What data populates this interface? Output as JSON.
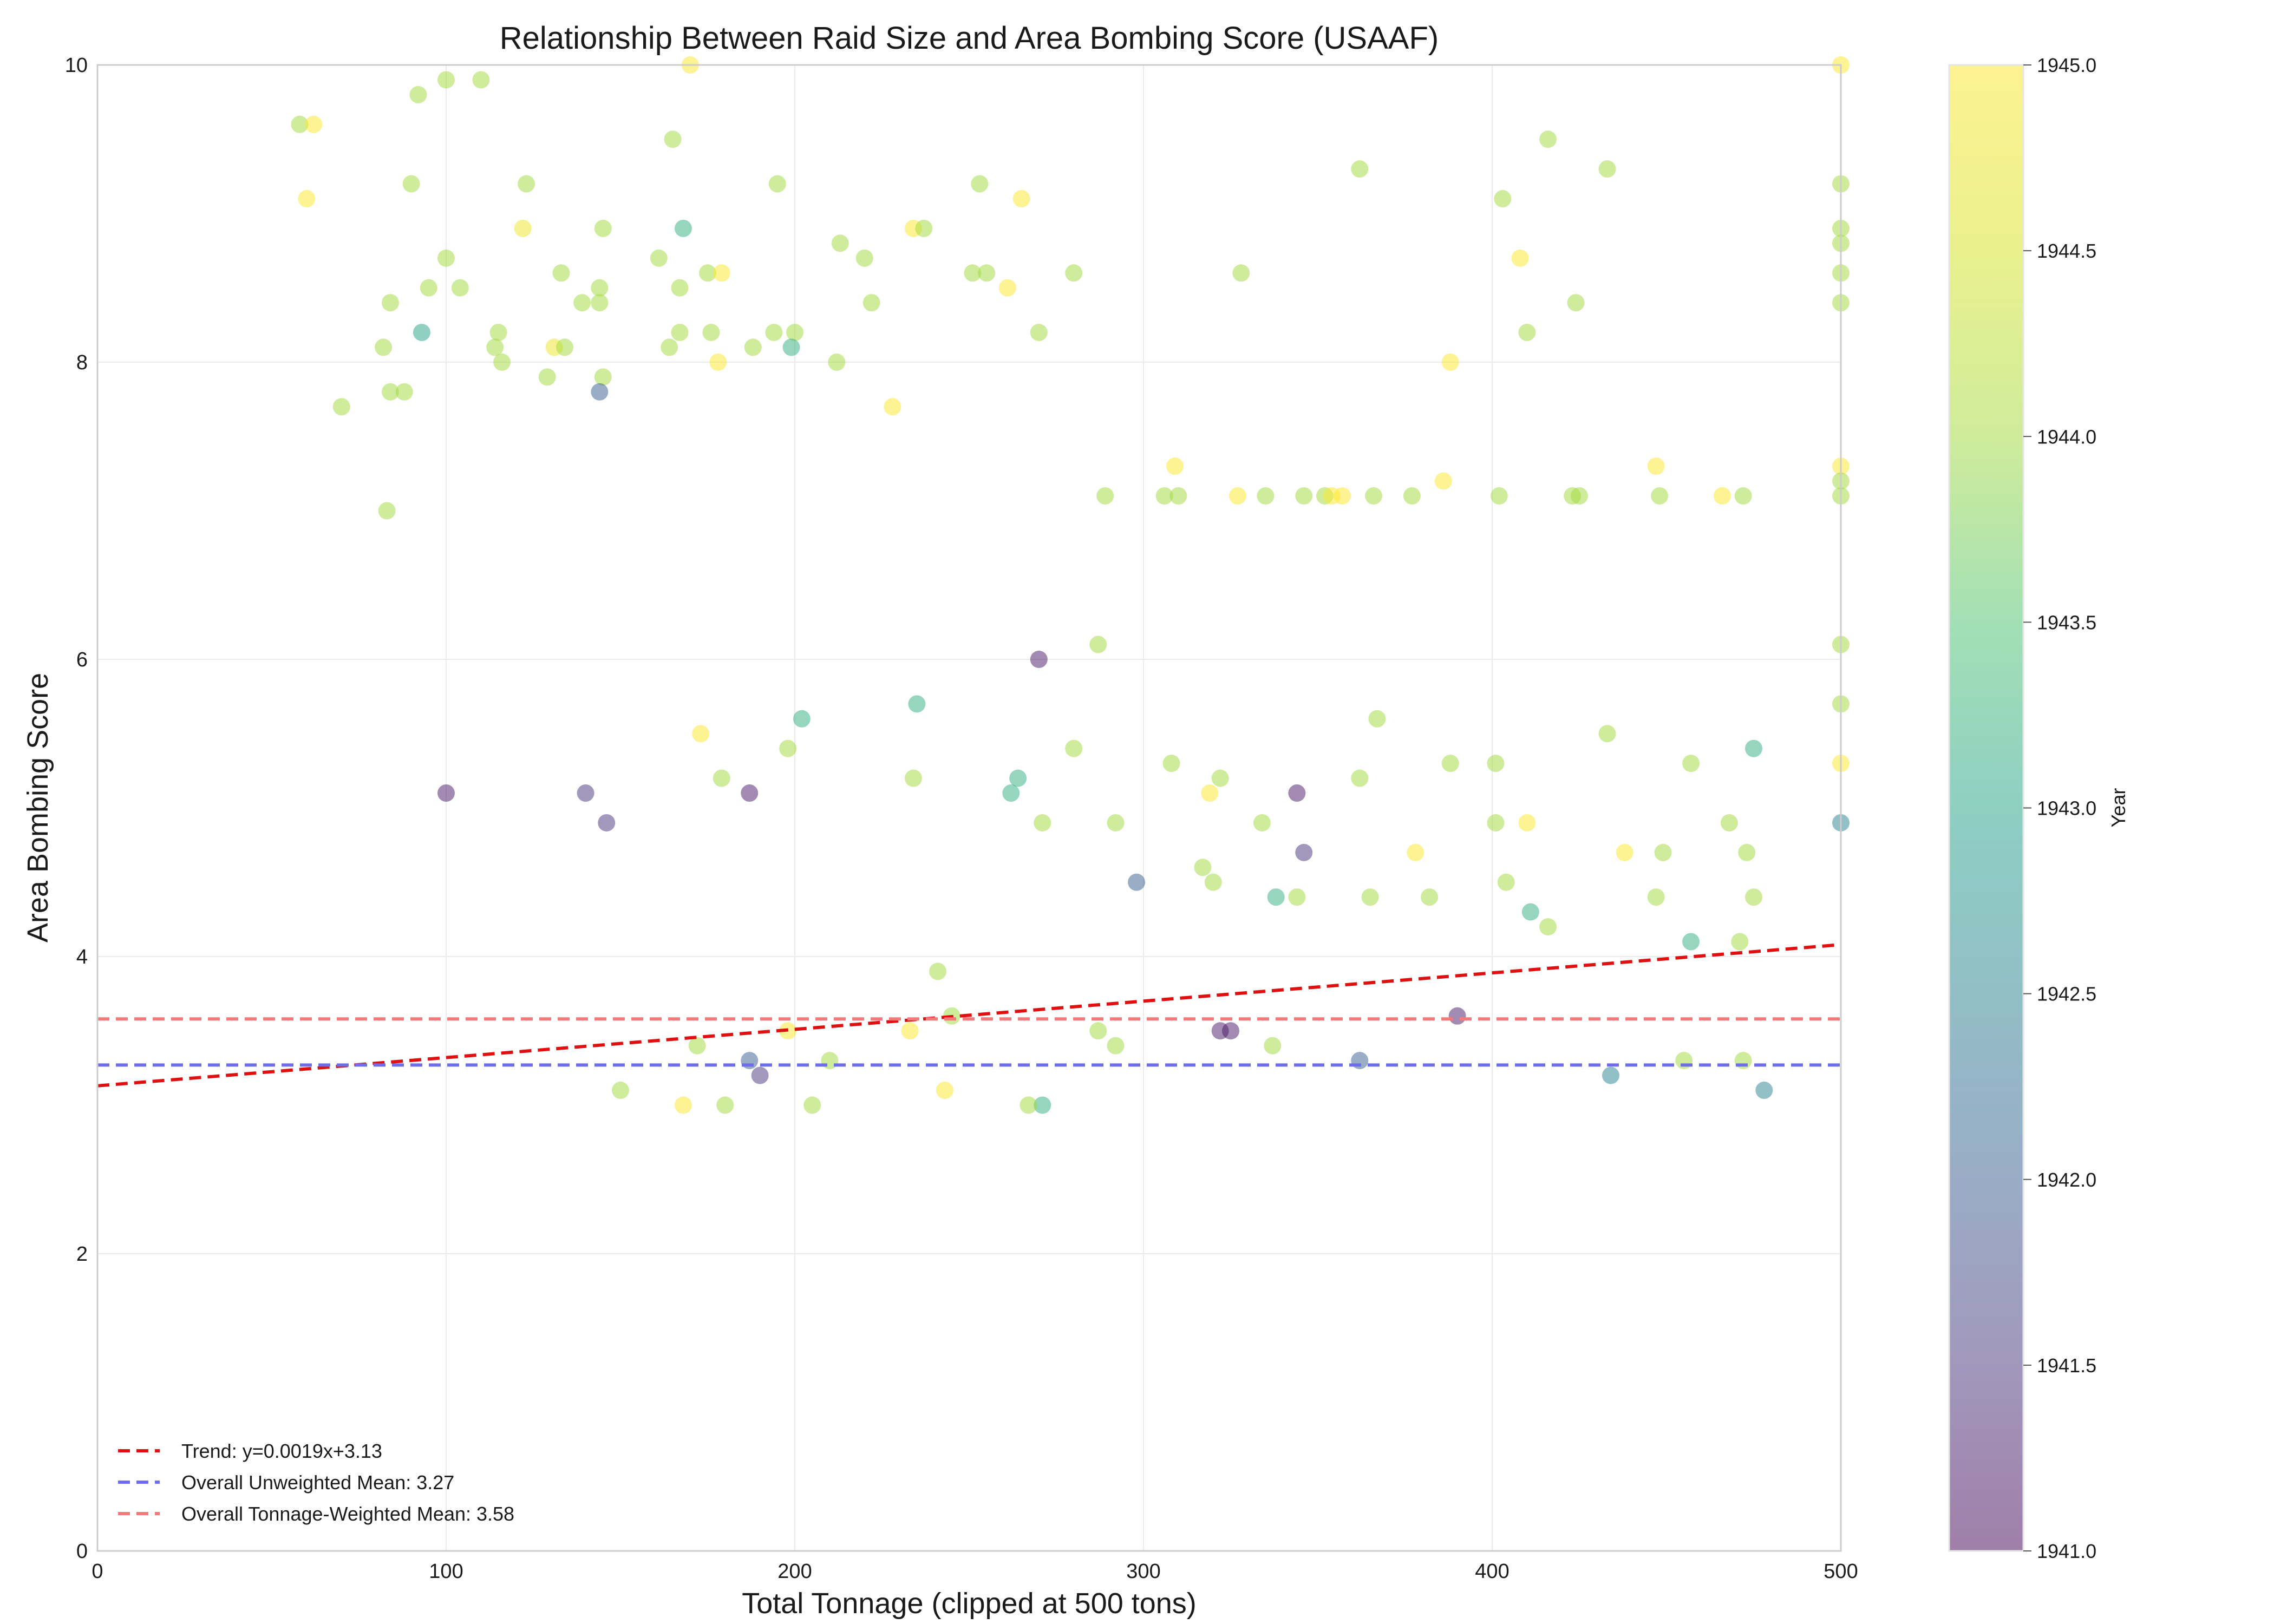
{
  "chart_data": {
    "type": "scatter",
    "title": "Relationship Between Raid Size and Area Bombing Score (USAAF)",
    "xlabel": "Total Tonnage (clipped at 500 tons)",
    "ylabel": "Area Bombing Score",
    "xlim": [
      0,
      500
    ],
    "ylim": [
      0,
      10
    ],
    "xticks": [
      "0",
      "100",
      "200",
      "300",
      "400",
      "500"
    ],
    "yticks": [
      "0",
      "2",
      "4",
      "6",
      "8",
      "10"
    ],
    "grid": true,
    "legend_position": "lower-left",
    "colorbar": {
      "label": "Year",
      "range": [
        1941.0,
        1945.0
      ],
      "ticks": [
        "1941.0",
        "1941.5",
        "1942.0",
        "1942.5",
        "1943.0",
        "1943.5",
        "1944.0",
        "1944.5",
        "1945.0"
      ],
      "colormap": "viridis",
      "alpha": 0.5
    },
    "lines": [
      {
        "label": "Trend: y=0.0019x+3.13",
        "style": "dashed",
        "color": "#e01010",
        "slope": 0.0019,
        "intercept": 3.13
      },
      {
        "label": "Overall Unweighted Mean: 3.27",
        "style": "dashed",
        "color": "#6e6ee8",
        "value": 3.27
      },
      {
        "label": "Overall Tonnage-Weighted Mean: 3.58",
        "style": "dashed",
        "color": "#f27a7a",
        "value": 3.58
      }
    ],
    "points": [
      {
        "x": 100,
        "y": 9.9,
        "year": 1944.0
      },
      {
        "x": 110,
        "y": 9.9,
        "year": 1944.0
      },
      {
        "x": 92,
        "y": 9.8,
        "year": 1944.0
      },
      {
        "x": 170,
        "y": 10.0,
        "year": 1945.0
      },
      {
        "x": 500,
        "y": 10.0,
        "year": 1945.0
      },
      {
        "x": 58,
        "y": 9.6,
        "year": 1944.0
      },
      {
        "x": 62,
        "y": 9.6,
        "year": 1945.0
      },
      {
        "x": 165,
        "y": 9.5,
        "year": 1944.0
      },
      {
        "x": 416,
        "y": 9.5,
        "year": 1944.0
      },
      {
        "x": 362,
        "y": 9.3,
        "year": 1944.0
      },
      {
        "x": 433,
        "y": 9.3,
        "year": 1944.0
      },
      {
        "x": 195,
        "y": 9.2,
        "year": 1944.0
      },
      {
        "x": 253,
        "y": 9.2,
        "year": 1944.0
      },
      {
        "x": 500,
        "y": 9.2,
        "year": 1944.0
      },
      {
        "x": 90,
        "y": 9.2,
        "year": 1944.0
      },
      {
        "x": 123,
        "y": 9.2,
        "year": 1944.0
      },
      {
        "x": 403,
        "y": 9.1,
        "year": 1944.0
      },
      {
        "x": 265,
        "y": 9.1,
        "year": 1945.0
      },
      {
        "x": 60,
        "y": 9.1,
        "year": 1945.0
      },
      {
        "x": 168,
        "y": 8.9,
        "year": 1943.2
      },
      {
        "x": 145,
        "y": 8.9,
        "year": 1944.0
      },
      {
        "x": 122,
        "y": 8.9,
        "year": 1944.8
      },
      {
        "x": 234,
        "y": 8.9,
        "year": 1945.0
      },
      {
        "x": 237,
        "y": 8.9,
        "year": 1944.0
      },
      {
        "x": 500,
        "y": 8.9,
        "year": 1944.0
      },
      {
        "x": 500,
        "y": 8.8,
        "year": 1944.0
      },
      {
        "x": 213,
        "y": 8.8,
        "year": 1944.0
      },
      {
        "x": 408,
        "y": 8.7,
        "year": 1945.0
      },
      {
        "x": 100,
        "y": 8.7,
        "year": 1944.0
      },
      {
        "x": 161,
        "y": 8.7,
        "year": 1944.0
      },
      {
        "x": 220,
        "y": 8.7,
        "year": 1944.0
      },
      {
        "x": 251,
        "y": 8.6,
        "year": 1944.0
      },
      {
        "x": 255,
        "y": 8.6,
        "year": 1944.0
      },
      {
        "x": 280,
        "y": 8.6,
        "year": 1944.0
      },
      {
        "x": 328,
        "y": 8.6,
        "year": 1944.0
      },
      {
        "x": 175,
        "y": 8.6,
        "year": 1944.0
      },
      {
        "x": 179,
        "y": 8.6,
        "year": 1945.0
      },
      {
        "x": 133,
        "y": 8.6,
        "year": 1944.0
      },
      {
        "x": 500,
        "y": 8.6,
        "year": 1944.0
      },
      {
        "x": 261,
        "y": 8.5,
        "year": 1945.0
      },
      {
        "x": 144,
        "y": 8.5,
        "year": 1944.0
      },
      {
        "x": 167,
        "y": 8.5,
        "year": 1944.0
      },
      {
        "x": 95,
        "y": 8.5,
        "year": 1944.0
      },
      {
        "x": 104,
        "y": 8.5,
        "year": 1944.0
      },
      {
        "x": 424,
        "y": 8.4,
        "year": 1944.0
      },
      {
        "x": 222,
        "y": 8.4,
        "year": 1944.0
      },
      {
        "x": 139,
        "y": 8.4,
        "year": 1944.0
      },
      {
        "x": 144,
        "y": 8.4,
        "year": 1944.0
      },
      {
        "x": 500,
        "y": 8.4,
        "year": 1944.0
      },
      {
        "x": 84,
        "y": 8.4,
        "year": 1944.0
      },
      {
        "x": 410,
        "y": 8.2,
        "year": 1944.0
      },
      {
        "x": 270,
        "y": 8.2,
        "year": 1944.0
      },
      {
        "x": 200,
        "y": 8.2,
        "year": 1944.0
      },
      {
        "x": 194,
        "y": 8.2,
        "year": 1944.0
      },
      {
        "x": 167,
        "y": 8.2,
        "year": 1944.0
      },
      {
        "x": 176,
        "y": 8.2,
        "year": 1944.0
      },
      {
        "x": 115,
        "y": 8.2,
        "year": 1944.0
      },
      {
        "x": 93,
        "y": 8.2,
        "year": 1943.0
      },
      {
        "x": 199,
        "y": 8.1,
        "year": 1943.2
      },
      {
        "x": 188,
        "y": 8.1,
        "year": 1944.0
      },
      {
        "x": 164,
        "y": 8.1,
        "year": 1944.0
      },
      {
        "x": 131,
        "y": 8.1,
        "year": 1944.8
      },
      {
        "x": 134,
        "y": 8.1,
        "year": 1944.0
      },
      {
        "x": 114,
        "y": 8.1,
        "year": 1944.0
      },
      {
        "x": 82,
        "y": 8.1,
        "year": 1944.0
      },
      {
        "x": 388,
        "y": 8.0,
        "year": 1945.0
      },
      {
        "x": 212,
        "y": 8.0,
        "year": 1944.0
      },
      {
        "x": 178,
        "y": 8.0,
        "year": 1945.0
      },
      {
        "x": 116,
        "y": 8.0,
        "year": 1944.0
      },
      {
        "x": 145,
        "y": 7.9,
        "year": 1944.0
      },
      {
        "x": 129,
        "y": 7.9,
        "year": 1944.0
      },
      {
        "x": 144,
        "y": 7.8,
        "year": 1942.0
      },
      {
        "x": 88,
        "y": 7.8,
        "year": 1944.0
      },
      {
        "x": 84,
        "y": 7.8,
        "year": 1944.0
      },
      {
        "x": 228,
        "y": 7.7,
        "year": 1945.0
      },
      {
        "x": 70,
        "y": 7.7,
        "year": 1944.0
      },
      {
        "x": 309,
        "y": 7.3,
        "year": 1945.0
      },
      {
        "x": 447,
        "y": 7.3,
        "year": 1945.0
      },
      {
        "x": 500,
        "y": 7.3,
        "year": 1945.0
      },
      {
        "x": 500,
        "y": 7.2,
        "year": 1944.0
      },
      {
        "x": 386,
        "y": 7.2,
        "year": 1945.0
      },
      {
        "x": 289,
        "y": 7.1,
        "year": 1944.0
      },
      {
        "x": 306,
        "y": 7.1,
        "year": 1944.0
      },
      {
        "x": 310,
        "y": 7.1,
        "year": 1944.0
      },
      {
        "x": 327,
        "y": 7.1,
        "year": 1945.0
      },
      {
        "x": 335,
        "y": 7.1,
        "year": 1944.0
      },
      {
        "x": 346,
        "y": 7.1,
        "year": 1944.0
      },
      {
        "x": 352,
        "y": 7.1,
        "year": 1944.0
      },
      {
        "x": 354,
        "y": 7.1,
        "year": 1945.0
      },
      {
        "x": 357,
        "y": 7.1,
        "year": 1945.0
      },
      {
        "x": 366,
        "y": 7.1,
        "year": 1944.0
      },
      {
        "x": 377,
        "y": 7.1,
        "year": 1944.0
      },
      {
        "x": 402,
        "y": 7.1,
        "year": 1944.0
      },
      {
        "x": 423,
        "y": 7.1,
        "year": 1944.0
      },
      {
        "x": 425,
        "y": 7.1,
        "year": 1944.0
      },
      {
        "x": 448,
        "y": 7.1,
        "year": 1944.0
      },
      {
        "x": 466,
        "y": 7.1,
        "year": 1945.0
      },
      {
        "x": 472,
        "y": 7.1,
        "year": 1944.0
      },
      {
        "x": 500,
        "y": 7.1,
        "year": 1944.0
      },
      {
        "x": 270,
        "y": 6.0,
        "year": 1941.2
      },
      {
        "x": 287,
        "y": 6.1,
        "year": 1944.0
      },
      {
        "x": 500,
        "y": 6.1,
        "year": 1944.0
      },
      {
        "x": 83,
        "y": 7.0,
        "year": 1944.0
      },
      {
        "x": 235,
        "y": 5.7,
        "year": 1943.2
      },
      {
        "x": 500,
        "y": 5.7,
        "year": 1944.0
      },
      {
        "x": 202,
        "y": 5.6,
        "year": 1943.2
      },
      {
        "x": 367,
        "y": 5.6,
        "year": 1944.0
      },
      {
        "x": 433,
        "y": 5.5,
        "year": 1944.0
      },
      {
        "x": 173,
        "y": 5.5,
        "year": 1945.0
      },
      {
        "x": 198,
        "y": 5.4,
        "year": 1944.0
      },
      {
        "x": 280,
        "y": 5.4,
        "year": 1944.0
      },
      {
        "x": 475,
        "y": 5.4,
        "year": 1943.2
      },
      {
        "x": 308,
        "y": 5.3,
        "year": 1944.0
      },
      {
        "x": 388,
        "y": 5.3,
        "year": 1944.0
      },
      {
        "x": 401,
        "y": 5.3,
        "year": 1944.0
      },
      {
        "x": 457,
        "y": 5.3,
        "year": 1944.0
      },
      {
        "x": 500,
        "y": 5.3,
        "year": 1945.0
      },
      {
        "x": 264,
        "y": 5.2,
        "year": 1943.2
      },
      {
        "x": 234,
        "y": 5.2,
        "year": 1944.0
      },
      {
        "x": 322,
        "y": 5.2,
        "year": 1944.0
      },
      {
        "x": 362,
        "y": 5.2,
        "year": 1944.0
      },
      {
        "x": 179,
        "y": 5.2,
        "year": 1944.0
      },
      {
        "x": 262,
        "y": 5.1,
        "year": 1943.2
      },
      {
        "x": 319,
        "y": 5.1,
        "year": 1945.0
      },
      {
        "x": 344,
        "y": 5.1,
        "year": 1941.2
      },
      {
        "x": 187,
        "y": 5.1,
        "year": 1941.2
      },
      {
        "x": 100,
        "y": 5.1,
        "year": 1941.2
      },
      {
        "x": 140,
        "y": 5.1,
        "year": 1941.5
      },
      {
        "x": 500,
        "y": 4.9,
        "year": 1942.5
      },
      {
        "x": 271,
        "y": 4.9,
        "year": 1944.0
      },
      {
        "x": 292,
        "y": 4.9,
        "year": 1944.0
      },
      {
        "x": 401,
        "y": 4.9,
        "year": 1944.0
      },
      {
        "x": 410,
        "y": 4.9,
        "year": 1945.0
      },
      {
        "x": 334,
        "y": 4.9,
        "year": 1944.0
      },
      {
        "x": 468,
        "y": 4.9,
        "year": 1944.0
      },
      {
        "x": 146,
        "y": 4.9,
        "year": 1941.5
      },
      {
        "x": 346,
        "y": 4.7,
        "year": 1941.5
      },
      {
        "x": 378,
        "y": 4.7,
        "year": 1945.0
      },
      {
        "x": 438,
        "y": 4.7,
        "year": 1945.0
      },
      {
        "x": 449,
        "y": 4.7,
        "year": 1944.0
      },
      {
        "x": 473,
        "y": 4.7,
        "year": 1944.0
      },
      {
        "x": 298,
        "y": 4.5,
        "year": 1942.0
      },
      {
        "x": 317,
        "y": 4.6,
        "year": 1944.0
      },
      {
        "x": 320,
        "y": 4.5,
        "year": 1944.0
      },
      {
        "x": 382,
        "y": 4.4,
        "year": 1944.0
      },
      {
        "x": 365,
        "y": 4.4,
        "year": 1944.0
      },
      {
        "x": 404,
        "y": 4.5,
        "year": 1944.0
      },
      {
        "x": 447,
        "y": 4.4,
        "year": 1944.0
      },
      {
        "x": 475,
        "y": 4.4,
        "year": 1944.0
      },
      {
        "x": 338,
        "y": 4.4,
        "year": 1943.2
      },
      {
        "x": 362,
        "y": 3.3,
        "year": 1942.0
      },
      {
        "x": 411,
        "y": 4.3,
        "year": 1943.2
      },
      {
        "x": 457,
        "y": 4.1,
        "year": 1943.2
      },
      {
        "x": 471,
        "y": 4.1,
        "year": 1944.0
      },
      {
        "x": 416,
        "y": 4.2,
        "year": 1944.0
      },
      {
        "x": 390,
        "y": 3.6,
        "year": 1941.2
      },
      {
        "x": 325,
        "y": 3.5,
        "year": 1941.2
      },
      {
        "x": 322,
        "y": 3.5,
        "year": 1941.2
      },
      {
        "x": 337,
        "y": 3.4,
        "year": 1944.0
      },
      {
        "x": 344,
        "y": 4.4,
        "year": 1944.0
      },
      {
        "x": 455,
        "y": 3.3,
        "year": 1944.0
      },
      {
        "x": 478,
        "y": 3.1,
        "year": 1942.5
      },
      {
        "x": 472,
        "y": 3.3,
        "year": 1944.0
      },
      {
        "x": 434,
        "y": 3.2,
        "year": 1942.5
      },
      {
        "x": 287,
        "y": 3.5,
        "year": 1944.0
      },
      {
        "x": 292,
        "y": 3.4,
        "year": 1944.0
      },
      {
        "x": 245,
        "y": 3.6,
        "year": 1944.0
      },
      {
        "x": 241,
        "y": 3.9,
        "year": 1944.0
      },
      {
        "x": 233,
        "y": 3.5,
        "year": 1945.0
      },
      {
        "x": 205,
        "y": 3.0,
        "year": 1944.0
      },
      {
        "x": 187,
        "y": 3.3,
        "year": 1942.0
      },
      {
        "x": 190,
        "y": 3.2,
        "year": 1941.5
      },
      {
        "x": 172,
        "y": 3.4,
        "year": 1944.0
      },
      {
        "x": 210,
        "y": 3.3,
        "year": 1944.0
      },
      {
        "x": 198,
        "y": 3.5,
        "year": 1945.0
      },
      {
        "x": 271,
        "y": 3.0,
        "year": 1943.2
      },
      {
        "x": 267,
        "y": 3.0,
        "year": 1944.0
      },
      {
        "x": 180,
        "y": 3.0,
        "year": 1944.0
      },
      {
        "x": 243,
        "y": 3.1,
        "year": 1945.0
      },
      {
        "x": 150,
        "y": 3.1,
        "year": 1944.0
      },
      {
        "x": 168,
        "y": 3.0,
        "year": 1945.0
      }
    ]
  }
}
